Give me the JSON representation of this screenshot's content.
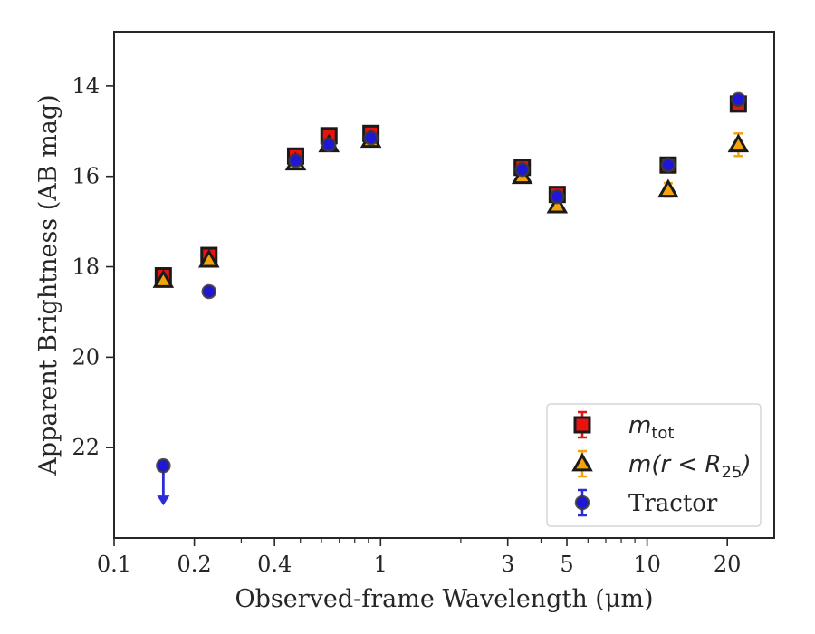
{
  "chart_data": {
    "type": "scatter",
    "title": "",
    "xlabel": "Observed-frame Wavelength (μm)",
    "ylabel": "Apparent Brightness (AB mag)",
    "xscale": "log",
    "xlim": [
      0.1,
      30
    ],
    "ylim": [
      24.0,
      12.8
    ],
    "y_inverted": true,
    "x_ticks": [
      0.1,
      0.2,
      0.4,
      1,
      3,
      5,
      10,
      20
    ],
    "x_tick_labels": [
      "0.1",
      "0.2",
      "0.4",
      "1",
      "3",
      "5",
      "10",
      "20"
    ],
    "y_ticks": [
      14,
      16,
      18,
      20,
      22
    ],
    "y_tick_labels": [
      "14",
      "16",
      "18",
      "20",
      "22"
    ],
    "grid": false,
    "legend": {
      "placement": "lower-right",
      "entries": [
        {
          "key": "m_tot",
          "text_main": "m",
          "text_sub": "tot"
        },
        {
          "key": "m_r25",
          "text_main": "m(r < R",
          "text_sub": "25",
          "text_tail": ")"
        },
        {
          "key": "tractor",
          "text_main": "Tractor"
        }
      ]
    },
    "series": [
      {
        "key": "m_tot",
        "marker": "square",
        "color": "#e8130f",
        "edge": "#1a1a1a",
        "errcolor": "#e8130f",
        "points": [
          {
            "x": 0.153,
            "y": 18.2,
            "err": 0.1
          },
          {
            "x": 0.227,
            "y": 17.75,
            "err": 0.08
          },
          {
            "x": 0.48,
            "y": 15.55,
            "err": 0.05
          },
          {
            "x": 0.64,
            "y": 15.1,
            "err": 0.05
          },
          {
            "x": 0.92,
            "y": 15.05,
            "err": 0.05
          },
          {
            "x": 3.4,
            "y": 15.8,
            "err": 0.06
          },
          {
            "x": 4.6,
            "y": 16.4,
            "err": 0.07
          },
          {
            "x": 12.0,
            "y": 15.75,
            "err": 0.08
          },
          {
            "x": 22.0,
            "y": 14.4,
            "err": 0.1
          }
        ]
      },
      {
        "key": "m_r25",
        "marker": "triangle",
        "color": "#f4a30c",
        "edge": "#1a1a1a",
        "errcolor": "#f4a30c",
        "points": [
          {
            "x": 0.153,
            "y": 18.3,
            "err": 0.05
          },
          {
            "x": 0.227,
            "y": 17.85,
            "err": 0.05
          },
          {
            "x": 0.48,
            "y": 15.7,
            "err": 0.05
          },
          {
            "x": 0.64,
            "y": 15.3,
            "err": 0.05
          },
          {
            "x": 0.92,
            "y": 15.2,
            "err": 0.05
          },
          {
            "x": 3.4,
            "y": 16.0,
            "err": 0.06
          },
          {
            "x": 4.6,
            "y": 16.65,
            "err": 0.07
          },
          {
            "x": 12.0,
            "y": 16.3,
            "err": 0.15
          },
          {
            "x": 22.0,
            "y": 15.3,
            "err": 0.25
          }
        ]
      },
      {
        "key": "tractor",
        "marker": "circle",
        "color": "#1f16d8",
        "edge": "#3a3a3a",
        "errcolor": "#2b2bd9",
        "points": [
          {
            "x": 0.153,
            "y": 22.4,
            "err": 0.0,
            "upper_limit": true
          },
          {
            "x": 0.227,
            "y": 18.55,
            "err": 0.03
          },
          {
            "x": 0.48,
            "y": 15.65,
            "err": 0.03
          },
          {
            "x": 0.64,
            "y": 15.3,
            "err": 0.03
          },
          {
            "x": 0.92,
            "y": 15.15,
            "err": 0.03
          },
          {
            "x": 3.4,
            "y": 15.85,
            "err": 0.03
          },
          {
            "x": 4.6,
            "y": 16.45,
            "err": 0.03
          },
          {
            "x": 12.0,
            "y": 15.75,
            "err": 0.03
          },
          {
            "x": 22.0,
            "y": 14.3,
            "err": 0.03
          }
        ]
      }
    ]
  }
}
